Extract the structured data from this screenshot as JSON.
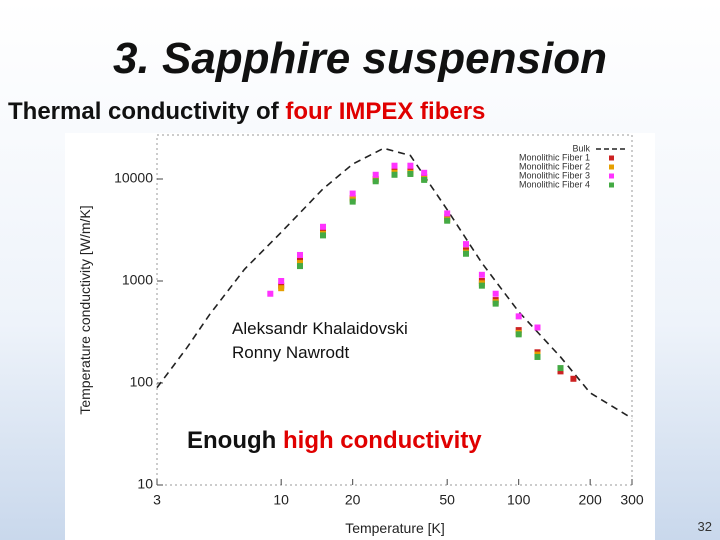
{
  "slide": {
    "title": "3. Sapphire suspension",
    "subtitle_parts": [
      "Thermal conductivity of",
      "four IMPEX fibers"
    ],
    "page_number": "32"
  },
  "chart_data": {
    "type": "line",
    "xscale": "log",
    "yscale": "log",
    "x_label": "Temperature [K]",
    "y_label": "Temperature conductivity [W/m/K]",
    "xlim": [
      3,
      300
    ],
    "ylim": [
      10,
      27000
    ],
    "xticks": [
      3,
      10,
      20,
      50,
      100,
      200,
      300
    ],
    "yticks": [
      10,
      100,
      1000,
      10000
    ],
    "grid": false,
    "legend": "upper right",
    "annotations": [
      "Aleksandr Khalaidovski",
      "Ronny Nawrodt"
    ],
    "conclusion_parts": [
      "Enough",
      "high conductivity"
    ],
    "series": [
      {
        "name": "Bulk",
        "color": "#222222",
        "style": "dashed",
        "x": [
          3,
          4,
          5,
          7,
          10,
          15,
          20,
          27,
          35,
          50,
          70,
          100,
          150,
          200,
          300
        ],
        "values": [
          90,
          220,
          470,
          1300,
          3000,
          8000,
          14000,
          20000,
          17000,
          5000,
          1500,
          500,
          180,
          80,
          45
        ]
      },
      {
        "name": "Monolithic Fiber 1",
        "color": "#cc2222",
        "style": "markers",
        "x": [
          9,
          10,
          12,
          15,
          20,
          25,
          30,
          35,
          40,
          50,
          60,
          70,
          80,
          100,
          120,
          150,
          170
        ],
        "values": [
          null,
          900,
          1600,
          3000,
          6500,
          10000,
          12000,
          12000,
          10500,
          4200,
          2000,
          1000,
          650,
          330,
          200,
          130,
          110
        ]
      },
      {
        "name": "Monolithic Fiber 2",
        "color": "#e69f00",
        "style": "markers",
        "x": [
          9,
          10,
          12,
          15,
          20,
          25,
          30,
          35,
          40,
          50,
          60,
          70,
          80,
          100,
          120,
          150,
          170
        ],
        "values": [
          null,
          850,
          1500,
          2900,
          6300,
          9800,
          11500,
          11500,
          10000,
          4000,
          1900,
          950,
          620,
          310,
          190,
          null,
          null
        ]
      },
      {
        "name": "Monolithic Fiber 3",
        "color": "#ff33ff",
        "style": "markers",
        "x": [
          9,
          10,
          12,
          15,
          20,
          25,
          30,
          35,
          40,
          50,
          60,
          70,
          80,
          100,
          120,
          150,
          170
        ],
        "values": [
          750,
          1000,
          1800,
          3400,
          7200,
          11000,
          13500,
          13500,
          11500,
          4600,
          2300,
          1150,
          750,
          450,
          350,
          null,
          null
        ]
      },
      {
        "name": "Monolithic Fiber 4",
        "color": "#44aa44",
        "style": "markers",
        "x": [
          9,
          10,
          12,
          15,
          20,
          25,
          30,
          35,
          40,
          50,
          60,
          70,
          80,
          100,
          120,
          150,
          170
        ],
        "values": [
          null,
          null,
          1400,
          2800,
          6000,
          9500,
          11000,
          11200,
          9800,
          3900,
          1850,
          900,
          600,
          300,
          180,
          140,
          null
        ]
      }
    ]
  }
}
